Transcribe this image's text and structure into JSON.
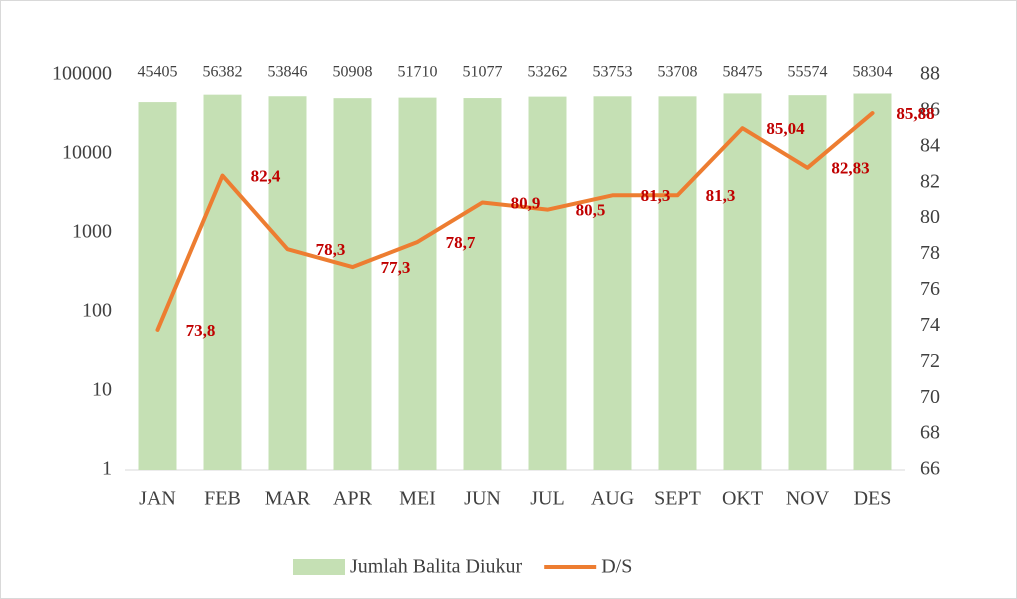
{
  "chart_data": {
    "type": "combo",
    "categories": [
      "JAN",
      "FEB",
      "MAR",
      "APR",
      "MEI",
      "JUN",
      "JUL",
      "AUG",
      "SEPT",
      "OKT",
      "NOV",
      "DES"
    ],
    "series": [
      {
        "name": "Jumlah Balita Diukur",
        "type": "bar",
        "color": "#c5e0b4",
        "values": [
          45405,
          56382,
          53846,
          50908,
          51710,
          51077,
          53262,
          53753,
          53708,
          58475,
          55574,
          58304
        ]
      },
      {
        "name": "D/S",
        "type": "line",
        "axis": "y2",
        "color": "#ed7d31",
        "values": [
          73.8,
          82.4,
          78.3,
          77.3,
          78.7,
          80.9,
          80.5,
          81.3,
          81.3,
          85.04,
          82.83,
          85.88
        ],
        "value_labels": [
          "73,8",
          "82,4",
          "78,3",
          "77,3",
          "78,7",
          "80,9",
          "80,5",
          "81,3",
          "81,3",
          "85,04",
          "82,83",
          "85,88"
        ]
      }
    ],
    "ylim": [
      1,
      100000
    ],
    "yticks": [
      1,
      10,
      100,
      1000,
      10000,
      100000
    ],
    "log_y": true,
    "y2lim": [
      66,
      88
    ],
    "y2ticks": [
      66,
      68,
      70,
      72,
      74,
      76,
      78,
      80,
      82,
      84,
      86,
      88
    ],
    "grid": false,
    "legend": "bottom"
  }
}
